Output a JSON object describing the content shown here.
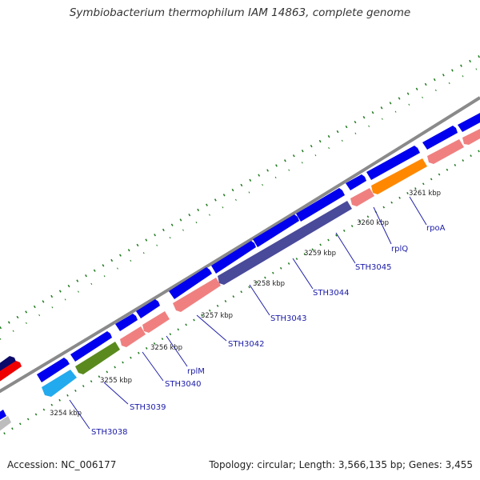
{
  "title": "Symbiobacterium thermophilum IAM 14863, complete genome",
  "footer": {
    "accession": "Accession: NC_006177",
    "summary": "Topology: circular; Length: 3,566,135 bp; Genes: 3,455"
  },
  "colors": {
    "forward_cds": "#0000ee",
    "reverse_cds": "#f08080",
    "reverse_cds_dark": "#4a4a9a",
    "reverse_cds_green": "#5a8a1e",
    "reverse_cds_cyan": "#22aaee",
    "reverse_cds_orange": "#ff8800",
    "backbone": "#888888",
    "gc_dots": "#1e7a1e"
  },
  "tick_labels": [
    "3254 kbp",
    "3255 kbp",
    "3256 kbp",
    "3257 kbp",
    "3258 kbp",
    "3259 kbp",
    "3260 kbp",
    "3261 kbp"
  ],
  "gene_labels": [
    "STH3038",
    "STH3039",
    "STH3040",
    "rplM",
    "STH3042",
    "STH3043",
    "STH3044",
    "STH3045",
    "rplQ",
    "rpoA"
  ]
}
